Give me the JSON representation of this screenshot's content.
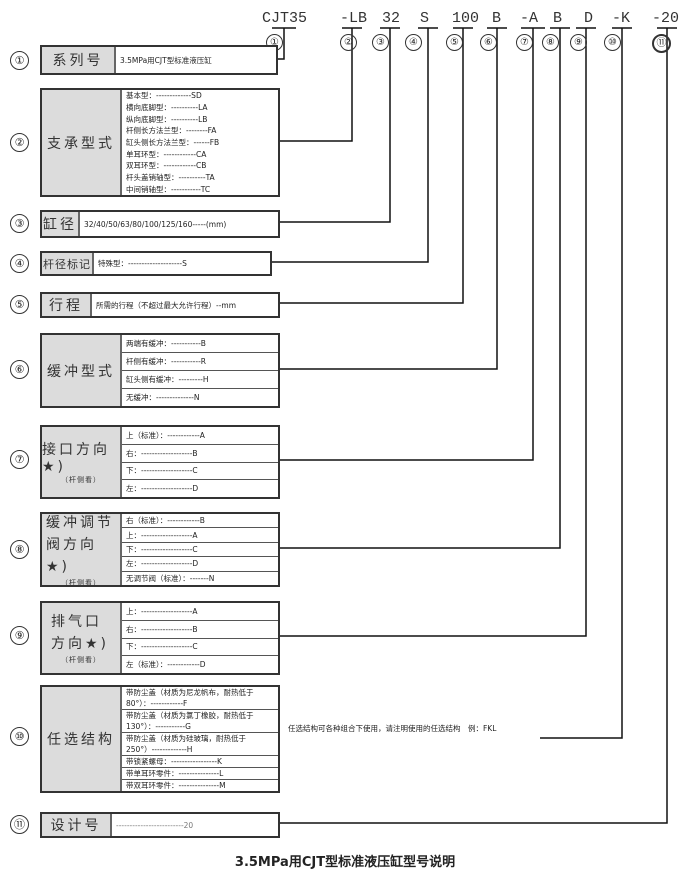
{
  "codes": [
    "CJT35",
    "-LB",
    "32",
    "S",
    "100",
    "B",
    "-A",
    "B",
    "D",
    "-K",
    "-20"
  ],
  "circle_numbers": [
    "①",
    "②",
    "③",
    "④",
    "⑤",
    "⑥",
    "⑦",
    "⑧",
    "⑨",
    "⑩",
    "⑪"
  ],
  "sections": [
    {
      "num": "①",
      "label": "系列号",
      "options": [
        "3.5MPa用CJT型标准液压缸"
      ]
    },
    {
      "num": "②",
      "label": "支承型式",
      "options": [
        "基本型：-------------SD",
        "横向底脚型：----------LA",
        "纵向底脚型：----------LB",
        "杆侧长方法兰型：--------FA",
        "缸头侧长方法兰型：------FB",
        "单耳环型：------------CA",
        "双耳环型：------------CB",
        "杆头盖销轴型：----------TA",
        "中间销轴型：-----------TC"
      ]
    },
    {
      "num": "③",
      "label": "缸径",
      "options": [
        "32/40/50/63/80/100/125/160-----(mm)"
      ]
    },
    {
      "num": "④",
      "label": "杆径标记",
      "options": [
        "特殊型：--------------------S"
      ]
    },
    {
      "num": "⑤",
      "label": "行程",
      "options": [
        "所需的行程（不超过最大允许行程）--mm"
      ]
    },
    {
      "num": "⑥",
      "label": "缓冲型式",
      "options": [
        "两端有缓冲：-----------B",
        "杆侧有缓冲：-----------R",
        "缸头侧有缓冲：---------H",
        "无缓冲：--------------N"
      ]
    },
    {
      "num": "⑦",
      "label": "接口方向★)",
      "sub": "（杆侧看）",
      "options": [
        "上（标准）：------------A",
        "右：-------------------B",
        "下：-------------------C",
        "左：-------------------D"
      ]
    },
    {
      "num": "⑧",
      "label": "缓冲调节阀方向★)",
      "sub": "（杆侧看）",
      "options": [
        "右（标准）：------------B",
        "上：-------------------A",
        "下：-------------------C",
        "左：-------------------D",
        "无调节阀（标准）：-------N"
      ]
    },
    {
      "num": "⑨",
      "label": "排气口方向★)",
      "sub": "（杆侧看）",
      "options": [
        "上：-------------------A",
        "右：-------------------B",
        "下：-------------------C",
        "左（标准）：------------D"
      ]
    },
    {
      "num": "⑩",
      "label": "任选结构",
      "options": [
        "带防尘盖（材质为尼龙帆布，耐热低于80°）：------------F",
        "带防尘盖（材质为氯丁橡胶，耐热低于130°）：-----------G",
        "带防尘盖（材质为硅玻璃，耐热低于250°）-------------H",
        "带锁紧螺母：-----------------K",
        "带单耳环零件：---------------L",
        "带双耳环零件：---------------M"
      ]
    },
    {
      "num": "⑪",
      "label": "设计号",
      "options": [
        "-------------------------20"
      ]
    }
  ],
  "note": "任选结构可各种组合下使用，请注明使用的任选结构　例：FKL",
  "title": "3.5MPa用CJT型标准液压缸型号说明"
}
